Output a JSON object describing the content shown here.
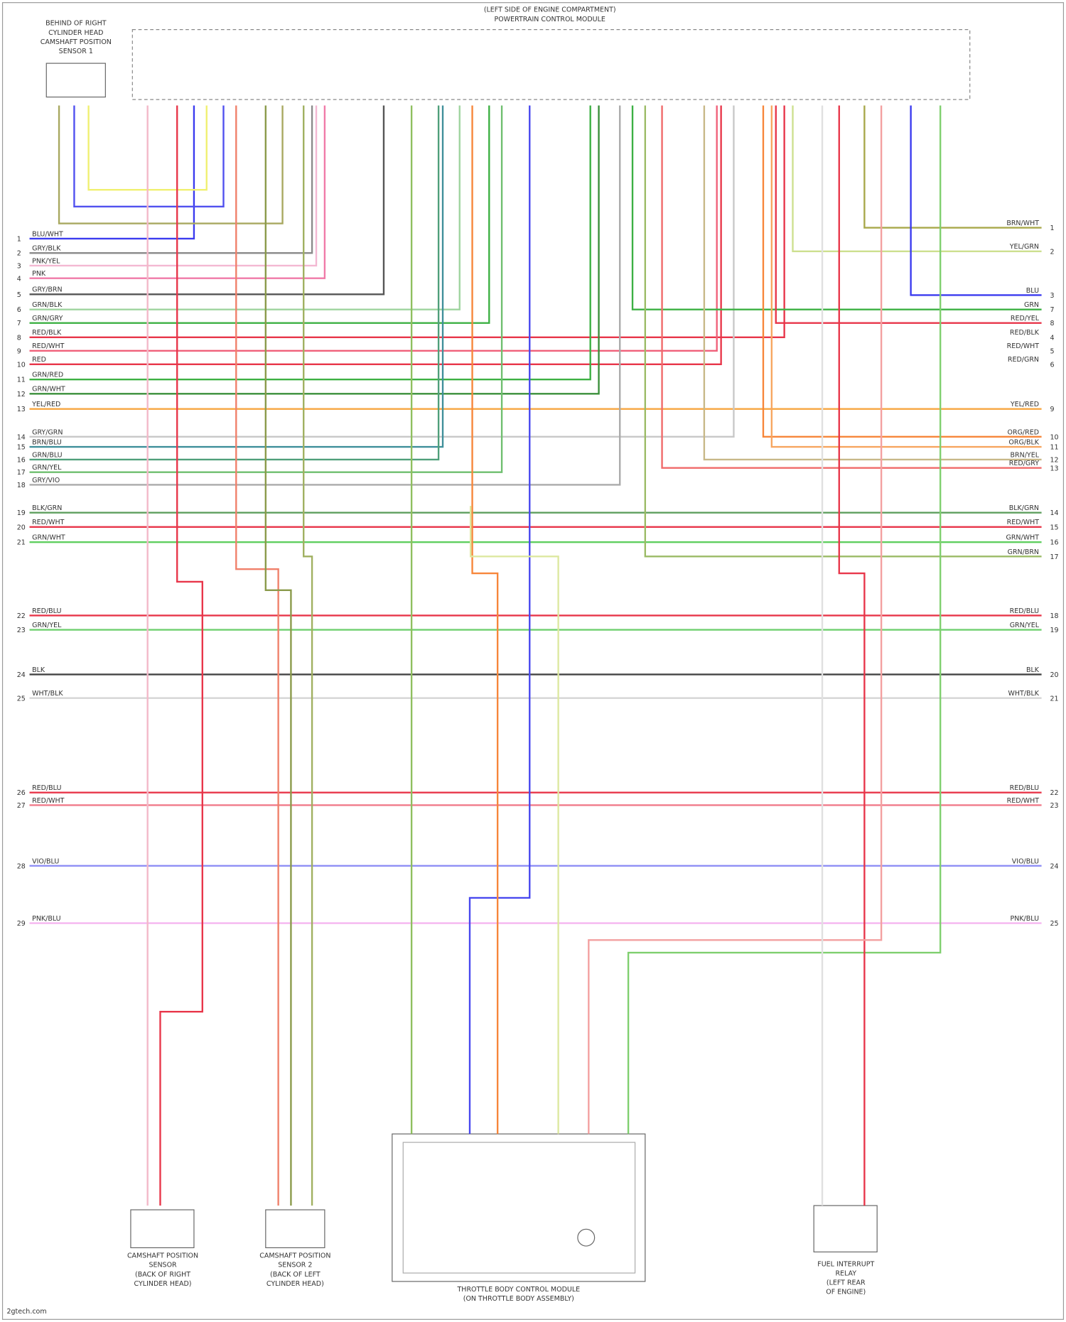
{
  "header": {
    "title": [
      "(LEFT SIDE OF ENGINE COMPARTMENT)",
      "POWERTRAIN CONTROL MODULE"
    ]
  },
  "components": [
    {
      "label": [
        "BEHIND OF RIGHT",
        "CYLINDER HEAD",
        "CAMSHAFT POSITION",
        "SENSOR 1"
      ]
    },
    {
      "label": [
        "CAMSHAFT POSITION",
        "SENSOR",
        "(BACK OF RIGHT",
        "CYLINDER HEAD)"
      ]
    },
    {
      "label": [
        "CAMSHAFT POSITION",
        "SENSOR 2",
        "(BACK OF LEFT",
        "CYLINDER HEAD)"
      ]
    },
    {
      "label": [
        "THROTTLE BODY CONTROL MODULE",
        "(ON THROTTLE BODY ASSEMBLY)"
      ]
    },
    {
      "label": [
        "FUEL INTERRUPT",
        "RELAY",
        "(LEFT REAR",
        "OF ENGINE)"
      ]
    }
  ],
  "rows": [
    {
      "color": "#3b3bef",
      "left": {
        "number": "1",
        "label": "BLU/WHT"
      }
    },
    {
      "color": "#8a8a8a",
      "left": {
        "number": "2",
        "label": "GRY/BLK"
      }
    },
    {
      "color": "#f3b8d2",
      "left": {
        "number": "3",
        "label": "PNK/YEL"
      }
    },
    {
      "color": "#f07aa8",
      "left": {
        "number": "4",
        "label": "PNK"
      }
    },
    {
      "color": "#555555",
      "left": {
        "number": "5",
        "label": "GRY/BRN"
      }
    },
    {
      "color": "#9fd49f",
      "left": {
        "number": "6",
        "label": "GRN/BLK"
      }
    },
    {
      "color": "#3cb043",
      "left": {
        "number": "7",
        "label": "GRN/GRY"
      }
    },
    {
      "color": "#e8364a",
      "left": {
        "number": "8",
        "label": "RED/BLK"
      },
      "right": {
        "number": "4",
        "label": "RED/BLK"
      }
    },
    {
      "color": "#f0607a",
      "left": {
        "number": "9",
        "label": "RED/WHT"
      },
      "right": {
        "number": "5",
        "label": "RED/WHT"
      }
    },
    {
      "color": "#e8364a",
      "left": {
        "number": "10",
        "label": "RED"
      },
      "right": {
        "number": "6",
        "label": "RED/GRN"
      }
    },
    {
      "color": "#3cb043",
      "left": {
        "number": "11",
        "label": "GRN/RED"
      }
    },
    {
      "color": "#3a8f3a",
      "left": {
        "number": "12",
        "label": "GRN/WHT"
      }
    },
    {
      "color": "#f7a640",
      "left": {
        "number": "13",
        "label": "YEL/RED"
      },
      "right": {
        "number": "9",
        "label": "YEL/RED"
      }
    },
    {
      "color": "#c8c8c8",
      "left": {
        "number": "14",
        "label": "GRY/GRN"
      }
    },
    {
      "color": "#3f8f9a",
      "left": {
        "number": "15",
        "label": "BRN/BLU"
      }
    },
    {
      "color": "#4f9f7a",
      "left": {
        "number": "16",
        "label": "GRN/BLU"
      }
    },
    {
      "color": "#6fbf6f",
      "left": {
        "number": "17",
        "label": "GRN/YEL"
      }
    },
    {
      "color": "#aaaaaa",
      "left": {
        "number": "18",
        "label": "GRY/VIO"
      }
    },
    {
      "color": "#5f9f5f",
      "left": {
        "number": "19",
        "label": "BLK/GRN"
      },
      "right": {
        "number": "14",
        "label": "BLK/GRN"
      }
    },
    {
      "color": "#e8364a",
      "left": {
        "number": "20",
        "label": "RED/WHT"
      },
      "right": {
        "number": "15",
        "label": "RED/WHT"
      }
    },
    {
      "color": "#5fcf5f",
      "left": {
        "number": "21",
        "label": "GRN/WHT"
      },
      "right": {
        "number": "16",
        "label": "GRN/WHT"
      }
    },
    {
      "color": "#e8364a",
      "left": {
        "number": "22",
        "label": "RED/BLU"
      },
      "right": {
        "number": "18",
        "label": "RED/BLU"
      }
    },
    {
      "color": "#6fcf6f",
      "left": {
        "number": "23",
        "label": "GRN/YEL"
      },
      "right": {
        "number": "19",
        "label": "GRN/YEL"
      }
    },
    {
      "color": "#444444",
      "left": {
        "number": "24",
        "label": "BLK"
      },
      "right": {
        "number": "20",
        "label": "BLK"
      }
    },
    {
      "color": "#d4d4d4",
      "left": {
        "number": "25",
        "label": "WHT/BLK"
      },
      "right": {
        "number": "21",
        "label": "WHT/BLK"
      }
    },
    {
      "color": "#e8364a",
      "left": {
        "number": "26",
        "label": "RED/BLU"
      },
      "right": {
        "number": "22",
        "label": "RED/BLU"
      }
    },
    {
      "color": "#f07a8a",
      "left": {
        "number": "27",
        "label": "RED/WHT"
      },
      "right": {
        "number": "23",
        "label": "RED/WHT"
      }
    },
    {
      "color": "#8f8ff5",
      "left": {
        "number": "28",
        "label": "VIO/BLU"
      },
      "right": {
        "number": "24",
        "label": "VIO/BLU"
      }
    },
    {
      "color": "#f5b5f0",
      "left": {
        "number": "29",
        "label": "PNK/BLU"
      },
      "right": {
        "number": "25",
        "label": "PNK/BLU"
      }
    },
    {
      "color": "#a8a84a",
      "right": {
        "number": "1",
        "label": "BRN/WHT"
      }
    },
    {
      "color": "#cde08f",
      "right": {
        "number": "2",
        "label": "YEL/GRN"
      }
    },
    {
      "color": "#3b3bef",
      "right": {
        "number": "3",
        "label": "BLU"
      }
    },
    {
      "color": "#3cb043",
      "right": {
        "number": "7",
        "label": "GRN"
      }
    },
    {
      "color": "#e8364a",
      "right": {
        "number": "8",
        "label": "RED/YEL"
      }
    },
    {
      "color": "#f7863a",
      "right": {
        "number": "10",
        "label": "ORG/RED"
      }
    },
    {
      "color": "#f7a660",
      "right": {
        "number": "11",
        "label": "ORG/BLK"
      }
    },
    {
      "color": "#c8b888",
      "right": {
        "number": "12",
        "label": "BRN/YEL"
      }
    },
    {
      "color": "#f06a6a",
      "right": {
        "number": "13",
        "label": "RED/GRY"
      }
    },
    {
      "color": "#9bbb66",
      "right": {
        "number": "17",
        "label": "GRN/BRN"
      }
    }
  ],
  "footer": "2gtech.com"
}
